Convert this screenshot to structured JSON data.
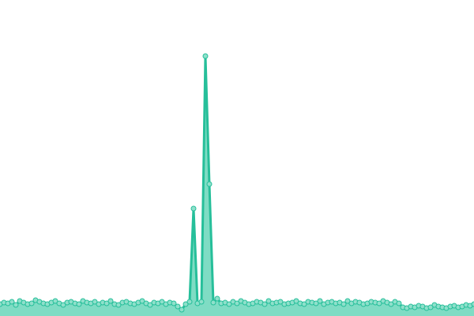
{
  "chart_data": {
    "type": "area",
    "values": [
      15,
      17,
      16,
      18,
      14,
      19,
      17,
      15,
      16,
      20,
      18,
      16,
      15,
      17,
      19,
      16,
      14,
      17,
      18,
      16,
      15,
      19,
      17,
      16,
      18,
      15,
      17,
      16,
      19,
      15,
      14,
      17,
      18,
      16,
      15,
      17,
      19,
      16,
      14,
      17,
      16,
      18,
      15,
      17,
      16,
      12,
      8,
      15,
      18,
      136,
      16,
      18,
      329,
      167,
      17,
      22,
      16,
      17,
      15,
      18,
      16,
      19,
      17,
      15,
      16,
      18,
      17,
      15,
      19,
      16,
      17,
      18,
      15,
      16,
      17,
      19,
      16,
      15,
      18,
      17,
      16,
      19,
      15,
      17,
      18,
      16,
      17,
      15,
      19,
      16,
      18,
      17,
      15,
      16,
      18,
      17,
      16,
      19,
      17,
      15,
      18,
      16,
      11,
      10,
      12,
      11,
      13,
      12,
      10,
      11,
      14,
      12,
      11,
      10,
      12,
      13,
      11,
      12,
      14,
      13,
      15
    ],
    "color": "#26bf9a",
    "fill_color": "#7fdcc4",
    "marker_color": "#8fe0cb",
    "ylim": [
      0,
      400
    ]
  }
}
